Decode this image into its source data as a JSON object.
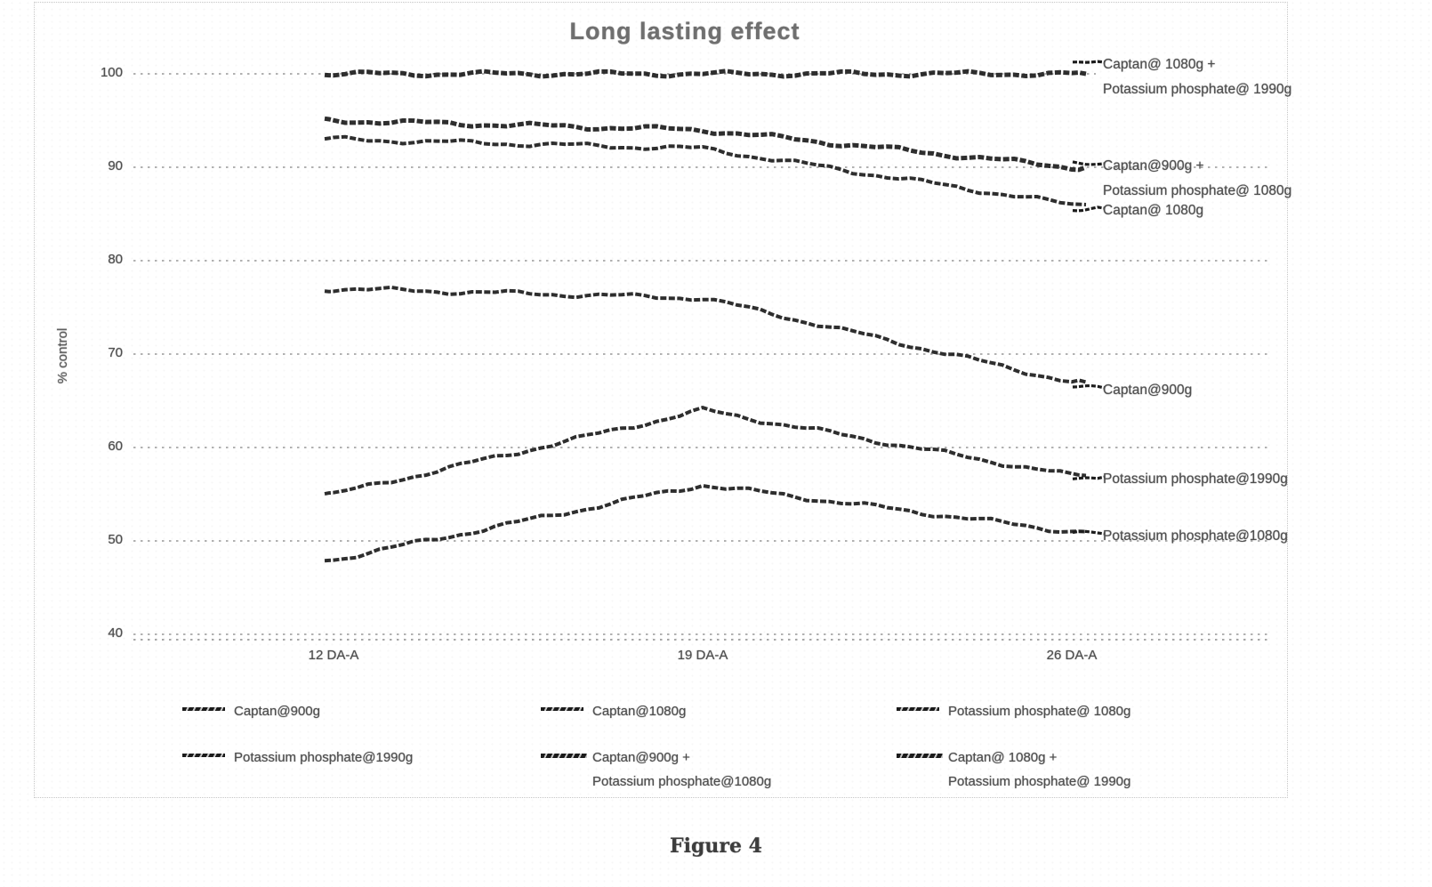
{
  "figure": {
    "caption": "Figure 4"
  },
  "colors": {
    "line": "#1c1c1c",
    "grid": "#a6a6a6",
    "text": "#4f4f4f",
    "title": "#6f6f6f",
    "frame": "#c6c6c6"
  },
  "chart_data": {
    "type": "line",
    "title": "Long lasting effect",
    "xlabel": "",
    "ylabel": "% control",
    "ylim": [
      40,
      100
    ],
    "yticks": [
      100,
      90,
      80,
      70,
      60,
      50,
      40
    ],
    "grid": true,
    "legend_position": "bottom",
    "categories": [
      "12 DA-A",
      "19 DA-A",
      "26 DA-A"
    ],
    "series": [
      {
        "name": "Captan@900g",
        "values": [
          77,
          76,
          67
        ]
      },
      {
        "name": "Captan@1080g",
        "values": [
          93,
          92,
          86
        ]
      },
      {
        "name": "Potassium phosphate@ 1080g",
        "values": [
          48,
          56,
          51
        ]
      },
      {
        "name": "Potassium phosphate@1990g",
        "values": [
          55,
          64,
          57
        ]
      },
      {
        "name": "Captan@900g + Potassium phosphate@1080g",
        "values": [
          95,
          94,
          90
        ]
      },
      {
        "name": "Captan@ 1080g + Potassium phosphate@ 1990g",
        "values": [
          100,
          100,
          100
        ]
      }
    ]
  },
  "right_labels": [
    {
      "lines": [
        "Captan@ 1080g +",
        "Potassium phosphate@ 1990g"
      ]
    },
    {
      "lines": [
        "Captan@900g +",
        "Potassium phosphate@ 1080g"
      ]
    },
    {
      "lines": [
        "Captan@ 1080g"
      ]
    },
    {
      "lines": [
        "Captan@900g"
      ]
    },
    {
      "lines": [
        "Potassium phosphate@1990g"
      ]
    },
    {
      "lines": [
        "Potassium phosphate@1080g"
      ]
    }
  ],
  "legend": {
    "rows": [
      [
        {
          "lines": [
            "Captan@900g"
          ]
        },
        {
          "lines": [
            "Captan@1080g"
          ]
        },
        {
          "lines": [
            "Potassium phosphate@ 1080g"
          ]
        }
      ],
      [
        {
          "lines": [
            "Potassium phosphate@1990g"
          ]
        },
        {
          "lines": [
            "Captan@900g +",
            "Potassium phosphate@1080g"
          ]
        },
        {
          "lines": [
            "Captan@ 1080g +",
            "Potassium phosphate@ 1990g"
          ]
        }
      ]
    ]
  }
}
